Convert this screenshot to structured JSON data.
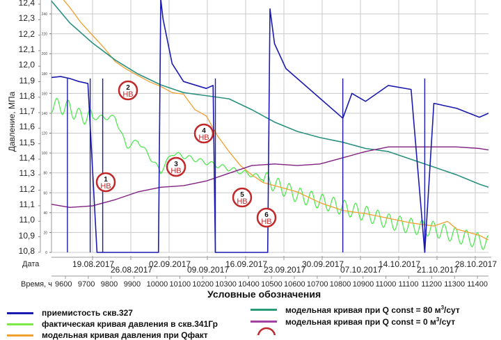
{
  "chart_data": {
    "type": "line",
    "title": "",
    "ylabel": "Давление, МПа",
    "ylabel_secondary": "",
    "ylim": [
      10.8,
      12.4
    ],
    "ylim_secondary": [
      0,
      240
    ],
    "y_ticks": [
      "12,4",
      "12,3",
      "12,2",
      "12,1",
      "12,0",
      "11,9",
      "11,8",
      "11,7",
      "11,6",
      "11,5",
      "11,4",
      "11,3",
      "11,2",
      "11,1",
      "11,0",
      "10,9",
      "10,8"
    ],
    "y_ticks_secondary": [
      "0",
      "20",
      "40",
      "60",
      "80",
      "100",
      "120",
      "140",
      "160",
      "180",
      "200",
      "220",
      "240"
    ],
    "x_axis_date_label": "Дата",
    "x_dates": [
      "19.08.2017",
      "26.08.2017",
      "02.09.2017",
      "09.09.2017",
      "16.09.2017",
      "23.09.2017",
      "30.09.2017",
      "07.10.2017",
      "14.10.2017",
      "21.10.2017",
      "28.10.2017"
    ],
    "x_axis_hour_label": "Время, ч",
    "x_hours": [
      "9600",
      "9700",
      "9800",
      "9900",
      "10000",
      "10100",
      "10200",
      "10300",
      "10400",
      "10500",
      "10600",
      "10700",
      "10800",
      "10900",
      "11000",
      "11100",
      "11200",
      "11300",
      "11400"
    ],
    "grid": true,
    "legend_position": "bottom",
    "series": [
      {
        "name": "приемистость скв.327",
        "color": "#1a1ab0",
        "axis": "secondary",
        "x": [
          9520,
          9560,
          9600,
          9640,
          9680,
          9720,
          9760,
          9800,
          9900,
          9990,
          10000,
          10010,
          10050,
          10100,
          10200,
          10230,
          10240,
          10300,
          10400,
          10470,
          10480,
          10500,
          10550,
          10600,
          10700,
          10800,
          10840,
          10900,
          11000,
          11100,
          11160,
          11200,
          11300,
          11400,
          11440
        ],
        "values": [
          176,
          177,
          175,
          172,
          170,
          0,
          0,
          0,
          0,
          0,
          255,
          235,
          190,
          172,
          165,
          168,
          0,
          0,
          0,
          0,
          245,
          210,
          185,
          175,
          155,
          135,
          160,
          152,
          168,
          164,
          0,
          150,
          145,
          136,
          140
        ]
      },
      {
        "name": "фактическая кривая давления в скв.341Гр",
        "color": "#33e533",
        "axis": "primary",
        "x": [
          9520,
          9600,
          9640,
          9700,
          9800,
          9850,
          9900,
          10000,
          10050,
          10100,
          10200,
          10300,
          10400,
          10450,
          10500,
          10600,
          10700,
          10800,
          10900,
          11000,
          11100,
          11200,
          11300,
          11440
        ],
        "values": [
          11.75,
          11.73,
          11.68,
          11.67,
          11.67,
          11.48,
          11.52,
          11.32,
          11.44,
          11.42,
          11.38,
          11.34,
          11.3,
          11.28,
          11.24,
          11.17,
          11.13,
          11.09,
          11.05,
          11.0,
          10.97,
          10.95,
          10.91,
          10.86
        ]
      },
      {
        "name": "модельная кривая давления при Qфакт",
        "color": "#f0a030",
        "axis": "primary",
        "x": [
          9520,
          9560,
          9600,
          9650,
          9700,
          9750,
          9800,
          9850,
          9900,
          9950,
          10000,
          10050,
          10100,
          10150,
          10200,
          10250,
          10300,
          10350,
          10400,
          10450,
          10500,
          10550,
          10600,
          10700,
          10800,
          10900,
          11000,
          11100,
          11200,
          11260,
          11300,
          11400,
          11440
        ],
        "values": [
          12.5,
          12.45,
          12.38,
          12.28,
          12.2,
          12.12,
          12.03,
          11.98,
          11.94,
          11.9,
          11.87,
          11.83,
          11.82,
          11.72,
          11.68,
          11.55,
          11.45,
          11.36,
          11.3,
          11.25,
          11.23,
          11.21,
          11.19,
          11.12,
          11.07,
          11.05,
          11.02,
          10.99,
          10.97,
          11.0,
          10.95,
          10.91,
          10.88
        ]
      },
      {
        "name": "модельная кривая при Q const = 80 м³/сут",
        "color": "#2a9080",
        "axis": "primary",
        "x": [
          9520,
          9600,
          9700,
          9800,
          9900,
          10000,
          10100,
          10200,
          10300,
          10400,
          10500,
          10600,
          10700,
          10800,
          10900,
          11000,
          11100,
          11200,
          11300,
          11400,
          11440
        ],
        "values": [
          12.42,
          12.28,
          12.15,
          12.04,
          11.95,
          11.88,
          11.83,
          11.81,
          11.79,
          11.72,
          11.64,
          11.58,
          11.54,
          11.51,
          11.47,
          11.45,
          11.4,
          11.35,
          11.3,
          11.24,
          11.22
        ]
      },
      {
        "name": "модельная кривая при Q const = 0 м³/сут",
        "color": "#802080",
        "axis": "primary",
        "x": [
          9520,
          9600,
          9700,
          9800,
          9900,
          10000,
          10100,
          10200,
          10300,
          10400,
          10500,
          10600,
          10700,
          10800,
          10900,
          11000,
          11100,
          11200,
          11300,
          11400,
          11440
        ],
        "values": [
          11.11,
          11.09,
          11.1,
          11.14,
          11.19,
          11.22,
          11.23,
          11.26,
          11.31,
          11.36,
          11.37,
          11.36,
          11.37,
          11.41,
          11.45,
          11.48,
          11.48,
          11.48,
          11.48,
          11.47,
          11.46
        ]
      }
    ],
    "annotations": [
      {
        "num": "1",
        "text": "НВ"
      },
      {
        "num": "2",
        "text": "НВ"
      },
      {
        "num": "3",
        "text": "НВ"
      },
      {
        "num": "4",
        "text": "НВ"
      },
      {
        "num": "5",
        "text": "НВ"
      },
      {
        "num": "6",
        "text": "НВ"
      }
    ]
  },
  "legend": {
    "title": "Условные обозначения",
    "items": [
      {
        "label": "приемистость скв.327",
        "color": "#1a1ab0"
      },
      {
        "label": "фактическая кривая давления в скв.341Гр",
        "color": "#7de84a"
      },
      {
        "label": "модельная кривая давления при Qфакт",
        "color": "#f0a030"
      },
      {
        "label": "модельная кривая при Q const = 80 м",
        "sup": "3",
        "suffix": "/сут",
        "color": "#2a9a78"
      },
      {
        "label": "модельная кривая при Q const = 0 м",
        "sup": "3",
        "suffix": "/сут",
        "color": "#a040a0"
      }
    ]
  }
}
